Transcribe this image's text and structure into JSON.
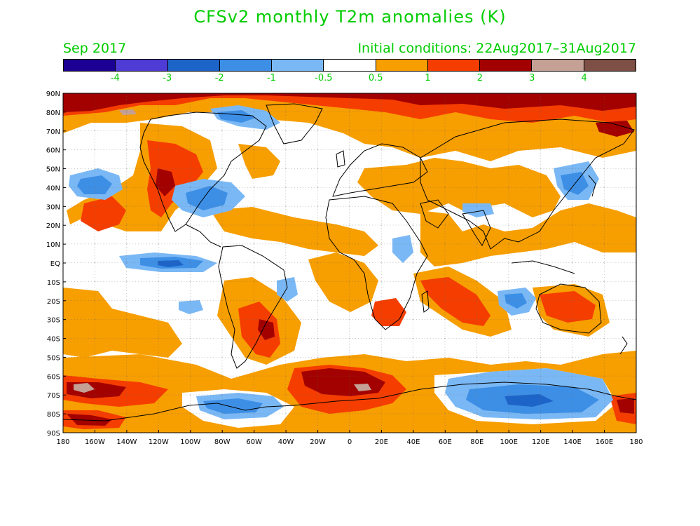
{
  "title": "CFSv2 monthly T2m anomalies (K)",
  "valid_month": "Sep 2017",
  "initial_conditions": "Initial conditions: 22Aug2017–31Aug2017",
  "colorbar": {
    "colors": [
      "#1c0094",
      "#4f3bd6",
      "#1d64c8",
      "#3d8fe6",
      "#7ab8f5",
      "#ffffff",
      "#f79e00",
      "#f53d00",
      "#a30000",
      "#c4a095",
      "#7d4f45"
    ],
    "labels": [
      "-4",
      "-3",
      "-2",
      "-1",
      "-0.5",
      "0.5",
      "1",
      "2",
      "3",
      "4"
    ]
  },
  "axes": {
    "lat_labels": [
      "90N",
      "80N",
      "70N",
      "60N",
      "50N",
      "40N",
      "30N",
      "20N",
      "10N",
      "EQ",
      "10S",
      "20S",
      "30S",
      "40S",
      "50S",
      "60S",
      "70S",
      "80S",
      "90S"
    ],
    "lon_labels": [
      "180",
      "160W",
      "140W",
      "120W",
      "100W",
      "80W",
      "60W",
      "40W",
      "20W",
      "0",
      "20E",
      "40E",
      "60E",
      "80E",
      "100E",
      "120E",
      "140E",
      "160E",
      "180"
    ]
  }
}
